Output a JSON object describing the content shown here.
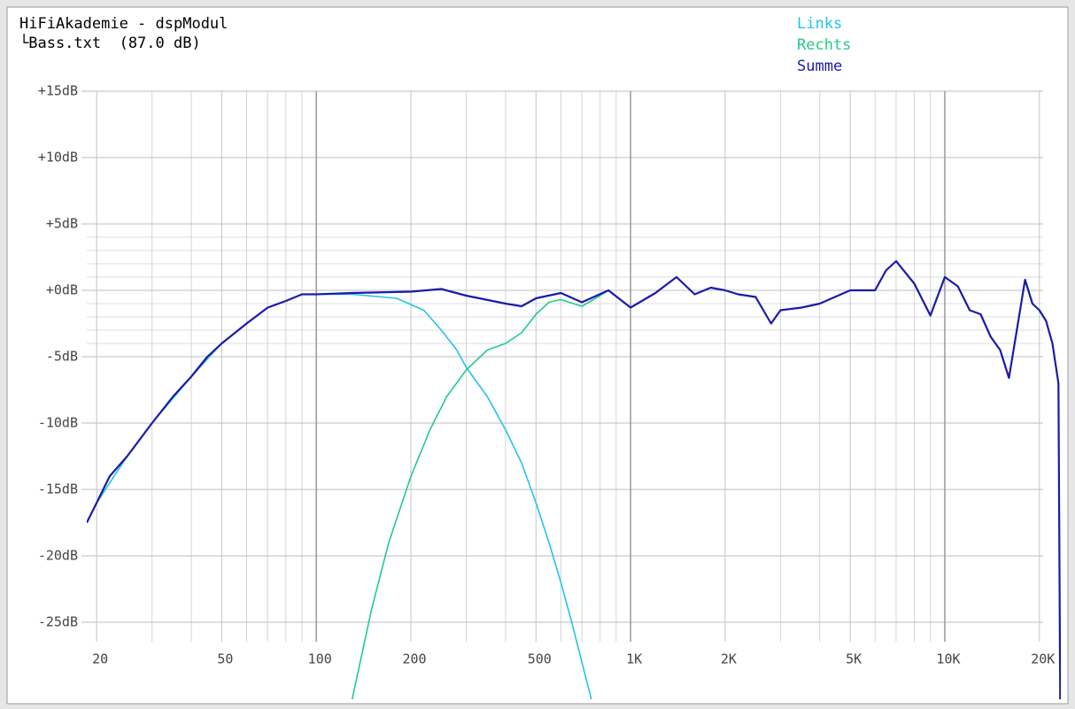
{
  "chart_data": {
    "type": "line",
    "title": "HiFiAkademie - dspModul",
    "subtitle": "└Bass.txt  (87.0 dB)",
    "xscale": "log",
    "xlim": [
      18.6,
      23400
    ],
    "ylim": [
      -30.8,
      15
    ],
    "xticks": [
      20,
      50,
      100,
      200,
      500,
      {
        "value": 1000,
        "label": "1K"
      },
      {
        "value": 2000,
        "label": "2K"
      },
      {
        "value": 5000,
        "label": "5K"
      },
      {
        "value": 10000,
        "label": "10K"
      },
      {
        "value": 20000,
        "label": "20K"
      }
    ],
    "x_minor_ticks": [
      30,
      40,
      60,
      70,
      80,
      90,
      300,
      400,
      600,
      700,
      800,
      900,
      3000,
      4000,
      6000,
      7000,
      8000,
      9000
    ],
    "yticks": [
      {
        "value": 15,
        "label": "+15dB"
      },
      {
        "value": 10,
        "label": "+10dB"
      },
      {
        "value": 5,
        "label": "+5dB"
      },
      {
        "value": 0,
        "label": "+0dB"
      },
      {
        "value": -5,
        "label": "-5dB"
      },
      {
        "value": -10,
        "label": "-10dB"
      },
      {
        "value": -15,
        "label": "-15dB"
      },
      {
        "value": -20,
        "label": "-20dB"
      },
      {
        "value": -25,
        "label": "-25dB"
      }
    ],
    "y_minor_ticks": [
      4,
      3,
      2,
      1,
      -1,
      -2,
      -3,
      -4
    ],
    "grid": true,
    "legend": "top-right",
    "series": [
      {
        "name": "Links",
        "color": "#22c4ea",
        "x": [
          18.6,
          20,
          25,
          30,
          40,
          50,
          60,
          70,
          80,
          90,
          100,
          130,
          180,
          220,
          250,
          280,
          300,
          350,
          400,
          450,
          500,
          550,
          600,
          650,
          700,
          750
        ],
        "values": [
          -17.5,
          -16,
          -12.5,
          -10,
          -6.5,
          -4,
          -2.5,
          -1.3,
          -0.8,
          -0.3,
          -0.3,
          -0.3,
          -0.6,
          -1.5,
          -3,
          -4.5,
          -5.8,
          -8,
          -10.5,
          -13,
          -16,
          -19,
          -22,
          -25,
          -28,
          -30.8
        ]
      },
      {
        "name": "Rechts",
        "color": "#22cc88",
        "x": [
          130,
          150,
          170,
          200,
          230,
          260,
          300,
          350,
          400,
          450,
          500,
          550,
          600,
          700,
          800,
          850,
          1000
        ],
        "values": [
          -30.8,
          -24,
          -19,
          -14,
          -10.5,
          -8,
          -6,
          -4.5,
          -4,
          -3.2,
          -1.8,
          -0.9,
          -0.7,
          -1.2,
          -0.4,
          0,
          -1.3
        ]
      },
      {
        "name": "Summe",
        "color": "#1a1aaa",
        "x": [
          18.6,
          20,
          22,
          25,
          30,
          35,
          40,
          45,
          50,
          60,
          70,
          80,
          90,
          100,
          130,
          200,
          250,
          300,
          400,
          450,
          500,
          600,
          700,
          850,
          1000,
          1200,
          1400,
          1600,
          1800,
          2000,
          2200,
          2500,
          2800,
          3000,
          3500,
          4000,
          5000,
          6000,
          6500,
          7000,
          8000,
          9000,
          10000,
          11000,
          12000,
          13000,
          14000,
          15000,
          16000,
          17000,
          18000,
          19000,
          20000,
          21000,
          22000,
          23000,
          23300
        ],
        "values": [
          -17.5,
          -16,
          -14,
          -12.5,
          -10,
          -8,
          -6.5,
          -5,
          -4,
          -2.5,
          -1.3,
          -0.8,
          -0.3,
          -0.3,
          -0.2,
          -0.1,
          0.1,
          -0.4,
          -1,
          -1.2,
          -0.6,
          -0.2,
          -0.9,
          0,
          -1.3,
          -0.2,
          1,
          -0.3,
          0.2,
          0,
          -0.3,
          -0.5,
          -2.5,
          -1.5,
          -1.3,
          -1,
          0,
          0,
          1.5,
          2.2,
          0.5,
          -1.9,
          1,
          0.3,
          -1.5,
          -1.8,
          -3.5,
          -4.5,
          -6.6,
          -2.8,
          0.8,
          -1,
          -1.5,
          -2.3,
          -4,
          -7,
          -30.8
        ]
      }
    ]
  }
}
